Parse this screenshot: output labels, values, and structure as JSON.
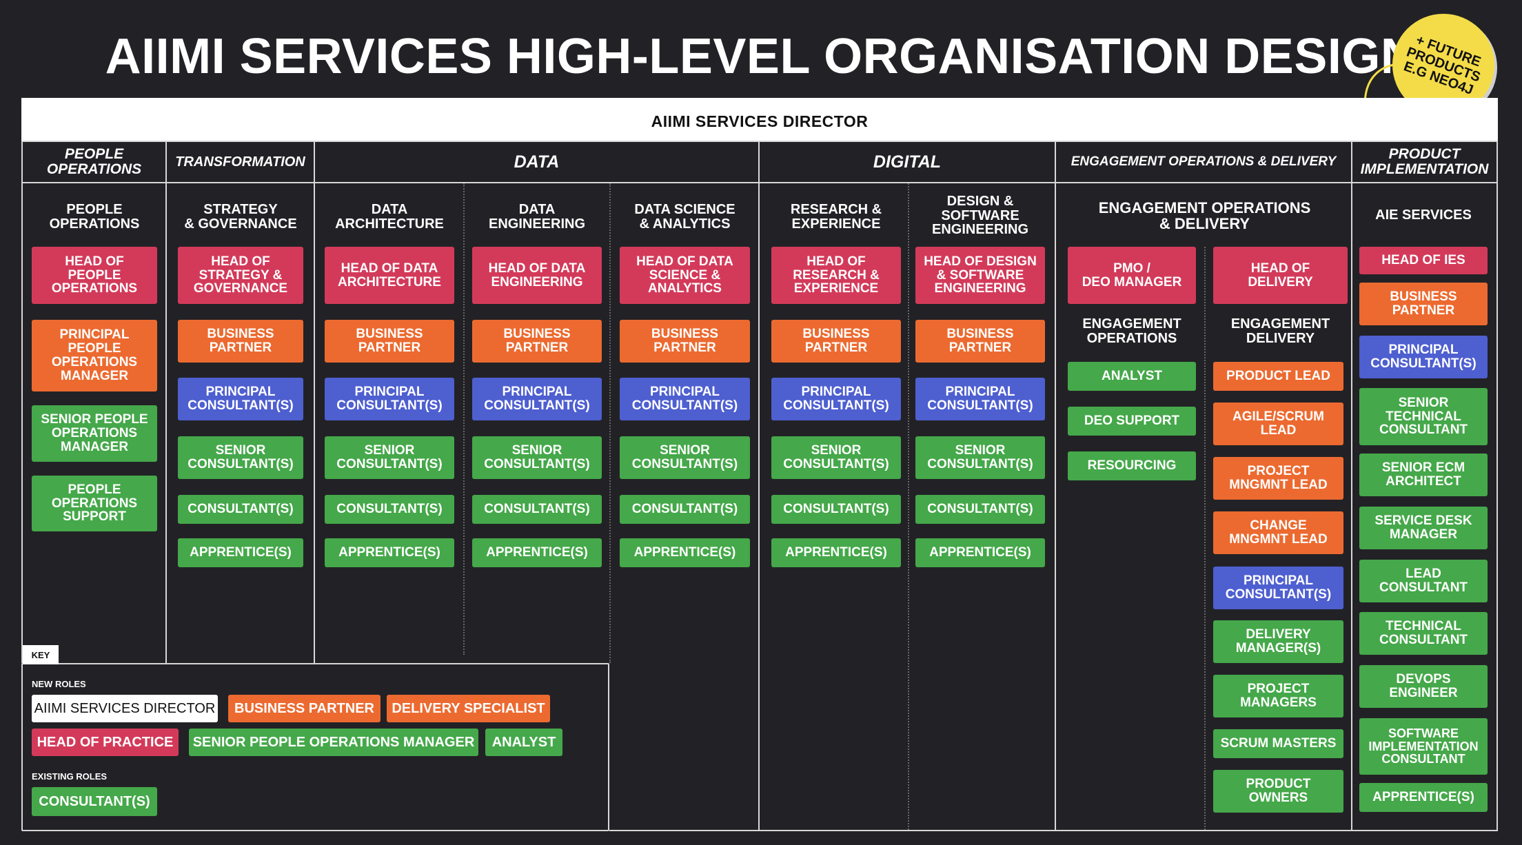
{
  "title": "AIIMI SERVICES HIGH-LEVEL ORGANISATION DESIGN",
  "director": "AIIMI SERVICES DIRECTOR",
  "badge": "+ FUTURE\nPRODUCTS\nE.G NEO4J",
  "colors": {
    "head": "#d33a5a",
    "partner": "#ec6a30",
    "principal": "#4e5fd0",
    "staff": "#45a84a",
    "badge": "#f4dc48",
    "background": "#222226"
  },
  "departments": {
    "people": "PEOPLE\nOPERATIONS",
    "transformation": "TRANSFORMATION",
    "data": "DATA",
    "digital": "DIGITAL",
    "engagement": "ENGAGEMENT OPERATIONS & DELIVERY",
    "product": "PRODUCT\nIMPLEMENTATION"
  },
  "columns": {
    "people": {
      "title": "PEOPLE\nOPERATIONS",
      "roles": [
        "HEAD OF\nPEOPLE\nOPERATIONS",
        "PRINCIPAL\nPEOPLE\nOPERATIONS\nMANAGER",
        "SENIOR PEOPLE\nOPERATIONS\nMANAGER",
        "PEOPLE\nOPERATIONS\nSUPPORT"
      ]
    },
    "strategy": {
      "title": "STRATEGY\n& GOVERNANCE",
      "roles": [
        "HEAD OF\nSTRATEGY &\nGOVERNANCE",
        "BUSINESS\nPARTNER",
        "PRINCIPAL\nCONSULTANT(S)",
        "SENIOR\nCONSULTANT(S)",
        "CONSULTANT(S)",
        "APPRENTICE(S)"
      ]
    },
    "data_arch": {
      "title": "DATA\nARCHITECTURE",
      "roles": [
        "HEAD OF DATA\nARCHITECTURE",
        "BUSINESS\nPARTNER",
        "PRINCIPAL\nCONSULTANT(S)",
        "SENIOR\nCONSULTANT(S)",
        "CONSULTANT(S)",
        "APPRENTICE(S)"
      ]
    },
    "data_eng": {
      "title": "DATA\nENGINEERING",
      "roles": [
        "HEAD OF DATA\nENGINEERING",
        "BUSINESS\nPARTNER",
        "PRINCIPAL\nCONSULTANT(S)",
        "SENIOR\nCONSULTANT(S)",
        "CONSULTANT(S)",
        "APPRENTICE(S)"
      ]
    },
    "data_sci": {
      "title": "DATA SCIENCE\n& ANALYTICS",
      "roles": [
        "HEAD OF DATA\nSCIENCE &\nANALYTICS",
        "BUSINESS\nPARTNER",
        "PRINCIPAL\nCONSULTANT(S)",
        "SENIOR\nCONSULTANT(S)",
        "CONSULTANT(S)",
        "APPRENTICE(S)"
      ]
    },
    "research": {
      "title": "RESEARCH &\nEXPERIENCE",
      "roles": [
        "HEAD OF\nRESEARCH &\nEXPERIENCE",
        "BUSINESS\nPARTNER",
        "PRINCIPAL\nCONSULTANT(S)",
        "SENIOR\nCONSULTANT(S)",
        "CONSULTANT(S)",
        "APPRENTICE(S)"
      ]
    },
    "design": {
      "title": "DESIGN &\nSOFTWARE\nENGINEERING",
      "roles": [
        "HEAD OF DESIGN\n& SOFTWARE\nENGINEERING",
        "BUSINESS\nPARTNER",
        "PRINCIPAL\nCONSULTANT(S)",
        "SENIOR\nCONSULTANT(S)",
        "CONSULTANT(S)",
        "APPRENTICE(S)"
      ]
    },
    "engagement": {
      "title": "ENGAGEMENT OPERATIONS\n& DELIVERY",
      "ops": {
        "head": "PMO /\nDEO MANAGER",
        "title": "ENGAGEMENT\nOPERATIONS",
        "roles": [
          "ANALYST",
          "DEO SUPPORT",
          "RESOURCING"
        ]
      },
      "delivery": {
        "head": "HEAD OF\nDELIVERY",
        "title": "ENGAGEMENT\nDELIVERY",
        "roles": [
          "PRODUCT LEAD",
          "AGILE/SCRUM\nLEAD",
          "PROJECT\nMNGMNT LEAD",
          "CHANGE\nMNGMNT LEAD",
          "PRINCIPAL\nCONSULTANT(S)",
          "DELIVERY\nMANAGER(S)",
          "PROJECT\nMANAGERS",
          "SCRUM MASTERS",
          "PRODUCT\nOWNERS"
        ]
      }
    },
    "aie": {
      "title": "AIE SERVICES",
      "roles": [
        "HEAD OF IES",
        "BUSINESS\nPARTNER",
        "PRINCIPAL\nCONSULTANT(S)",
        "SENIOR\nTECHNICAL\nCONSULTANT",
        "SENIOR ECM\nARCHITECT",
        "SERVICE DESK\nMANAGER",
        "LEAD\nCONSULTANT",
        "TECHNICAL\nCONSULTANT",
        "DEVOPS\nENGINEER",
        "SOFTWARE\nIMPLEMENTATION\nCONSULTANT",
        "APPRENTICE(S)"
      ]
    }
  },
  "key": {
    "tab": "KEY",
    "new_label": "NEW ROLES",
    "existing_label": "EXISTING ROLES",
    "new_roles": [
      "AIIMI SERVICES DIRECTOR",
      "BUSINESS PARTNER",
      "DELIVERY SPECIALIST",
      "HEAD OF PRACTICE",
      "SENIOR PEOPLE OPERATIONS MANAGER",
      "ANALYST"
    ],
    "existing_roles": [
      "CONSULTANT(S)"
    ]
  }
}
